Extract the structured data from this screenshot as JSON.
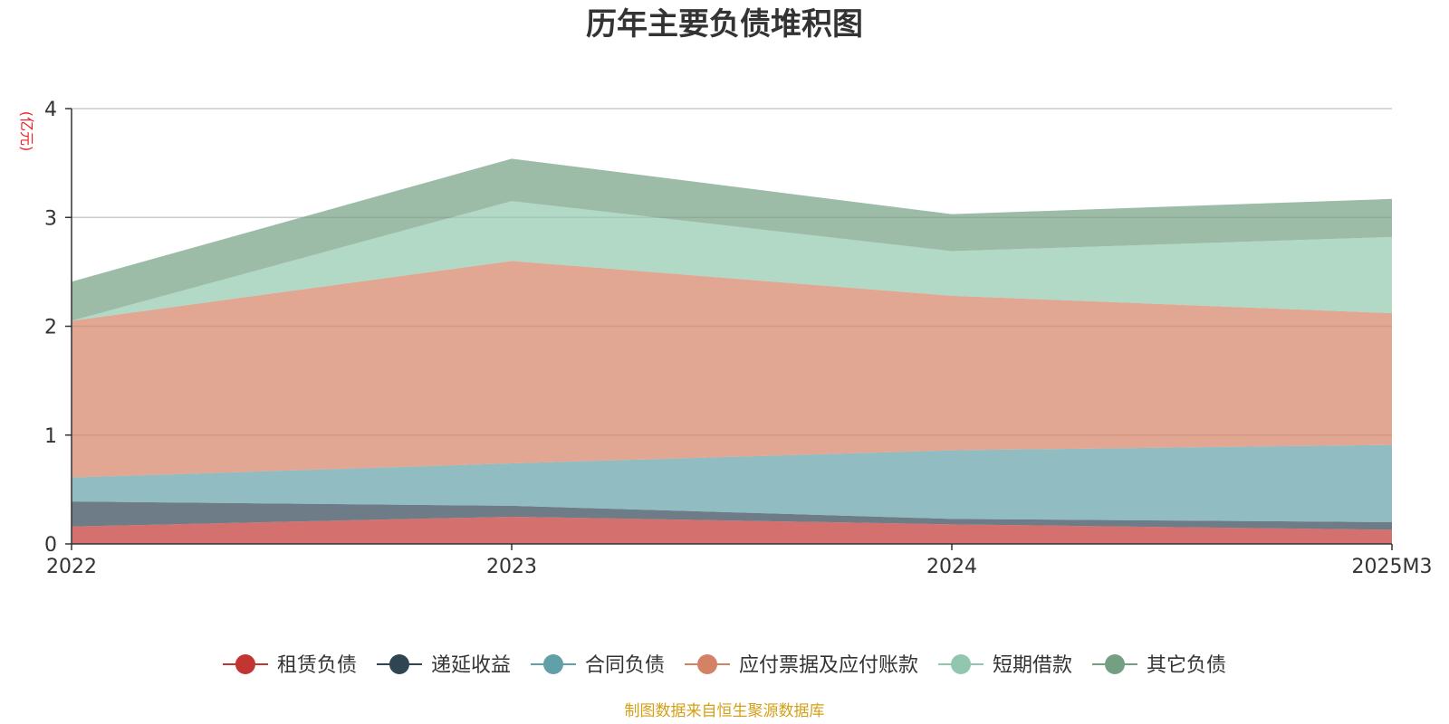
{
  "chart_data": {
    "type": "area",
    "stacked": true,
    "title": "历年主要负债堆积图",
    "y_unit": "(亿元)",
    "x": [
      "2022",
      "2023",
      "2024",
      "2025M3"
    ],
    "y_ticks": [
      "0",
      "1",
      "2",
      "3",
      "4"
    ],
    "ylim": [
      0,
      4
    ],
    "grid": true,
    "legend_position": "bottom",
    "series": [
      {
        "name": "租赁负债",
        "color": "#c23531",
        "values": [
          0.16,
          0.25,
          0.18,
          0.13
        ]
      },
      {
        "name": "递延收益",
        "color": "#2f4554",
        "values": [
          0.23,
          0.1,
          0.05,
          0.07
        ]
      },
      {
        "name": "合同负债",
        "color": "#61a0a8",
        "values": [
          0.22,
          0.39,
          0.63,
          0.71
        ]
      },
      {
        "name": "应付票据及应付账款",
        "color": "#d48265",
        "values": [
          1.44,
          1.86,
          1.42,
          1.21
        ]
      },
      {
        "name": "短期借款",
        "color": "#91c7ae",
        "values": [
          0.0,
          0.55,
          0.41,
          0.7
        ]
      },
      {
        "name": "其它负债",
        "color": "#749f83",
        "values": [
          0.36,
          0.39,
          0.34,
          0.35
        ]
      }
    ],
    "source": "制图数据来自恒生聚源数据库"
  }
}
